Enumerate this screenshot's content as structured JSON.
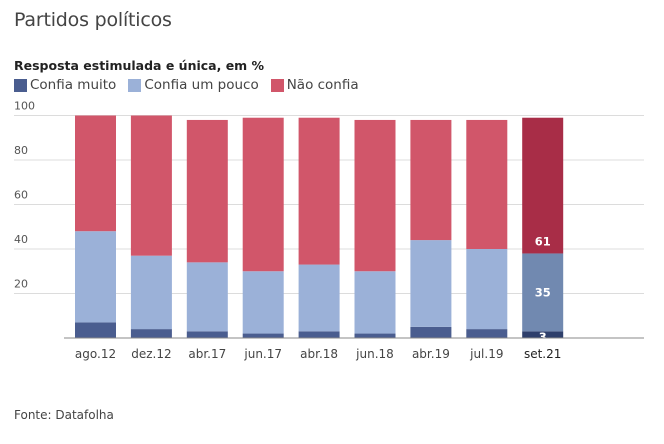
{
  "title": "Partidos políticos",
  "subtitle": "Resposta estimulada e única, em %",
  "source": "Fonte: Datafolha",
  "legend": [
    {
      "label": "Confia muito",
      "color": "#4a5d8f"
    },
    {
      "label": "Confia um pouco",
      "color": "#9bb1d8"
    },
    {
      "label": "Não confia",
      "color": "#d1566a"
    }
  ],
  "highlight_colors": {
    "Confia muito": "#2e3f6b",
    "Confia um pouco": "#7189b0",
    "Não confia": "#a82d47"
  },
  "chart_data": {
    "type": "bar",
    "stacked": true,
    "title": "Partidos políticos",
    "subtitle": "Resposta estimulada e única, em %",
    "xlabel": "",
    "ylabel": "",
    "ylim": [
      0,
      100
    ],
    "yticks": [
      20,
      40,
      60,
      80,
      100
    ],
    "grid": true,
    "legend_position": "top-left",
    "categories": [
      "ago.12",
      "dez.12",
      "abr.17",
      "jun.17",
      "abr.18",
      "jun.18",
      "abr.19",
      "jul.19",
      "set.21"
    ],
    "highlight_category": "set.21",
    "series": [
      {
        "name": "Confia muito",
        "values": [
          7,
          4,
          3,
          2,
          3,
          2,
          5,
          4,
          3
        ]
      },
      {
        "name": "Confia um pouco",
        "values": [
          41,
          33,
          31,
          28,
          30,
          28,
          39,
          36,
          35
        ]
      },
      {
        "name": "Não confia",
        "values": [
          52,
          63,
          64,
          69,
          66,
          68,
          54,
          58,
          61
        ]
      }
    ],
    "data_labels": [
      {
        "category": "set.21",
        "series": "Confia muito",
        "text": "3"
      },
      {
        "category": "set.21",
        "series": "Confia um pouco",
        "text": "35"
      },
      {
        "category": "set.21",
        "series": "Não confia",
        "text": "61"
      }
    ]
  }
}
